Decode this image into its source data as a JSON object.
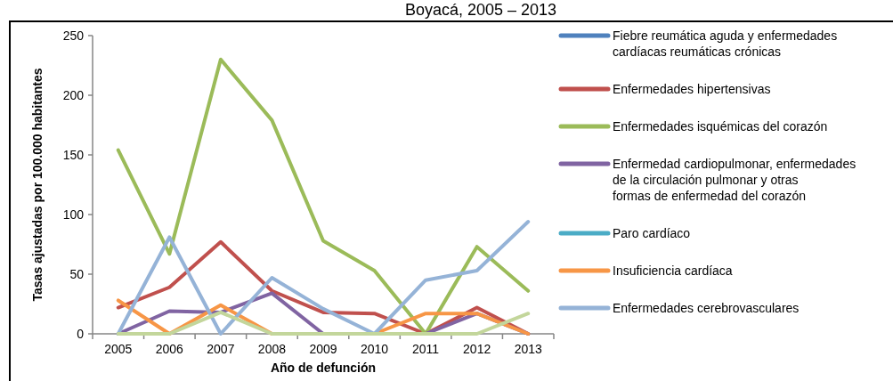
{
  "chart_data": {
    "type": "line",
    "title": "Boyacá,  2005 – 2013",
    "xlabel": "Año de defunción",
    "ylabel": "Tasas ajustadas por 100.000 habitantes",
    "categories": [
      "2005",
      "2006",
      "2007",
      "2008",
      "2009",
      "2010",
      "2011",
      "2012",
      "2013"
    ],
    "series": [
      {
        "name": "Fiebre reumática aguda y enfermedades cardíacas reumáticas crónicas",
        "color": "#4f81bd",
        "values": [
          null,
          null,
          null,
          null,
          null,
          null,
          null,
          null,
          null
        ]
      },
      {
        "name": "Enfermedades hipertensivas",
        "color": "#c0504d",
        "values": [
          22,
          39,
          77,
          36,
          18,
          17,
          0,
          22,
          0
        ]
      },
      {
        "name": "Enfermedades isquémicas del corazón",
        "color": "#9bbb59",
        "values": [
          154,
          67,
          230,
          179,
          78,
          53,
          0,
          73,
          36
        ]
      },
      {
        "name": "Enfermedad cardiopulmonar, enfermedades de la circulación pulmonar y otras formas de enfermedad del corazón",
        "color": "#8064a2",
        "values": [
          0,
          19,
          18,
          34,
          0,
          0,
          0,
          17,
          0
        ]
      },
      {
        "name": "Paro cardíaco",
        "color": "#4bacc6",
        "values": [
          null,
          null,
          null,
          null,
          null,
          null,
          null,
          null,
          null
        ]
      },
      {
        "name": "Insuficiencia cardíaca",
        "color": "#f79646",
        "values": [
          28,
          0,
          24,
          0,
          0,
          0,
          17,
          17,
          0
        ]
      },
      {
        "name": "Enfermedades cerebrovasculares",
        "color": "#95b3d7",
        "values": [
          0,
          81,
          0,
          47,
          21,
          0,
          45,
          53,
          94
        ]
      },
      {
        "color": "#c3d69b",
        "values": [
          0,
          0,
          18,
          0,
          0,
          0,
          0,
          0,
          17
        ]
      }
    ],
    "ylim": [
      0,
      250
    ],
    "yticks": [
      0,
      50,
      100,
      150,
      200,
      250
    ],
    "grid": false,
    "legend": "right",
    "line_style": "solid",
    "marker": "none"
  }
}
